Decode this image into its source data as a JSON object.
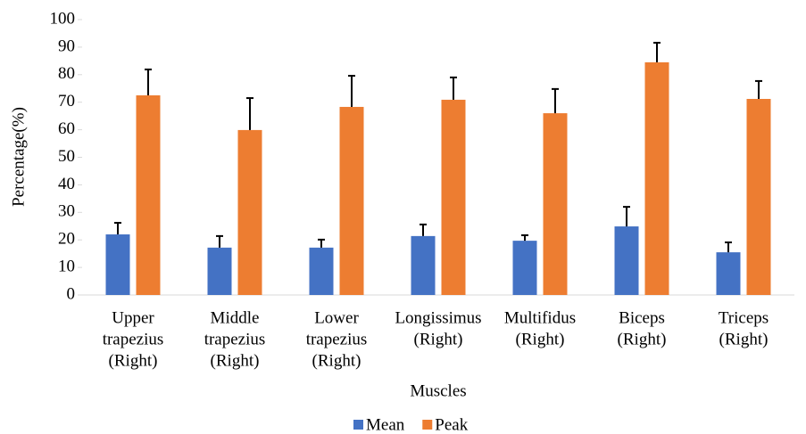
{
  "chart_data": {
    "type": "bar",
    "x_label": "Muscles",
    "y_label": "Percentage(%)",
    "categories": [
      [
        "Upper",
        "trapezius",
        "(Right)"
      ],
      [
        "Middle",
        "trapezius",
        "(Right)"
      ],
      [
        "Lower",
        "trapezius",
        "(Right)"
      ],
      [
        "Longissimus",
        "(Right)"
      ],
      [
        "Multifidus",
        "(Right)"
      ],
      [
        "Biceps",
        "(Right)"
      ],
      [
        "Triceps",
        "(Right)"
      ]
    ],
    "series": [
      {
        "name": "Mean",
        "color": "#4472c4",
        "values": [
          22,
          17.2,
          17.2,
          21.4,
          19.7,
          24.9,
          15.5
        ],
        "errors": [
          4.2,
          4.2,
          2.9,
          4.2,
          2,
          7.1,
          3.6
        ]
      },
      {
        "name": "Peak",
        "color": "#ed7d31",
        "values": [
          72.5,
          59.9,
          68.3,
          70.9,
          66,
          84.5,
          71.2
        ],
        "errors": [
          9.4,
          11.6,
          11.3,
          8.1,
          8.8,
          7.1,
          6.5
        ]
      }
    ],
    "ylim": [
      0,
      100
    ],
    "yticks": [
      0,
      10,
      20,
      30,
      40,
      50,
      60,
      70,
      80,
      90,
      100
    ],
    "grid": false,
    "legend": "bottom"
  }
}
